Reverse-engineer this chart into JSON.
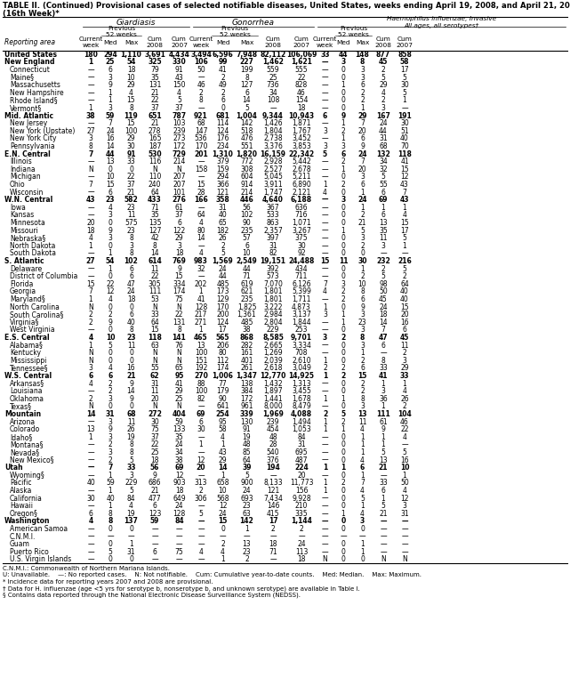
{
  "title_line1": "TABLE II. (Continued) Provisional cases of selected notifiable diseases, United States, weeks ending April 19, 2008, and April 21, 2007",
  "title_line2": "(16th Week)*",
  "rows": [
    [
      "United States",
      "180",
      "294",
      "1,110",
      "3,691",
      "4,434",
      "3,494",
      "6,596",
      "7,948",
      "82,112",
      "106,069",
      "33",
      "44",
      "148",
      "877",
      "858"
    ],
    [
      "New England",
      "1",
      "25",
      "54",
      "325",
      "330",
      "106",
      "99",
      "227",
      "1,462",
      "1,621",
      "—",
      "3",
      "8",
      "45",
      "58"
    ],
    [
      "Connecticut",
      "—",
      "6",
      "18",
      "79",
      "91",
      "50",
      "41",
      "199",
      "559",
      "555",
      "—",
      "0",
      "3",
      "2",
      "17"
    ],
    [
      "Maine§",
      "—",
      "3",
      "10",
      "35",
      "43",
      "—",
      "2",
      "8",
      "25",
      "22",
      "—",
      "0",
      "3",
      "5",
      "5"
    ],
    [
      "Massachusetts",
      "—",
      "9",
      "29",
      "131",
      "150",
      "46",
      "49",
      "127",
      "736",
      "828",
      "—",
      "1",
      "6",
      "29",
      "30"
    ],
    [
      "New Hampshire",
      "—",
      "1",
      "4",
      "21",
      "4",
      "2",
      "2",
      "6",
      "34",
      "46",
      "—",
      "0",
      "2",
      "4",
      "5"
    ],
    [
      "Rhode Island§",
      "—",
      "1",
      "15",
      "22",
      "5",
      "8",
      "6",
      "14",
      "108",
      "154",
      "—",
      "0",
      "2",
      "2",
      "1"
    ],
    [
      "Vermont§",
      "1",
      "3",
      "8",
      "37",
      "37",
      "—",
      "0",
      "5",
      "—",
      "18",
      "—",
      "0",
      "1",
      "3",
      "—"
    ],
    [
      "Mid. Atlantic",
      "38",
      "59",
      "119",
      "651",
      "787",
      "921",
      "681",
      "1,004",
      "9,344",
      "10,943",
      "6",
      "9",
      "29",
      "167",
      "191"
    ],
    [
      "New Jersey",
      "—",
      "7",
      "15",
      "21",
      "103",
      "68",
      "114",
      "142",
      "1,426",
      "1,871",
      "—",
      "1",
      "7",
      "24",
      "30"
    ],
    [
      "New York (Upstate)",
      "27",
      "24",
      "100",
      "278",
      "239",
      "147",
      "124",
      "518",
      "1,804",
      "1,767",
      "3",
      "2",
      "20",
      "44",
      "51"
    ],
    [
      "New York City",
      "3",
      "16",
      "29",
      "165",
      "273",
      "536",
      "176",
      "476",
      "2,738",
      "3,452",
      "—",
      "1",
      "6",
      "31",
      "40"
    ],
    [
      "Pennsylvania",
      "8",
      "14",
      "30",
      "187",
      "172",
      "170",
      "234",
      "551",
      "3,376",
      "3,853",
      "3",
      "3",
      "9",
      "68",
      "70"
    ],
    [
      "E.N. Central",
      "7",
      "44",
      "91",
      "530",
      "729",
      "201",
      "1,310",
      "1,820",
      "16,159",
      "22,342",
      "5",
      "6",
      "24",
      "132",
      "118"
    ],
    [
      "Illinois",
      "—",
      "13",
      "33",
      "116",
      "214",
      "—",
      "379",
      "772",
      "2,928",
      "5,442",
      "—",
      "2",
      "7",
      "34",
      "41"
    ],
    [
      "Indiana",
      "N",
      "0",
      "0",
      "N",
      "N",
      "158",
      "159",
      "308",
      "2,527",
      "2,678",
      "—",
      "1",
      "20",
      "32",
      "15"
    ],
    [
      "Michigan",
      "—",
      "10",
      "22",
      "110",
      "207",
      "—",
      "294",
      "604",
      "5,045",
      "5,211",
      "—",
      "0",
      "3",
      "5",
      "12"
    ],
    [
      "Ohio",
      "7",
      "15",
      "37",
      "240",
      "207",
      "15",
      "366",
      "914",
      "3,911",
      "6,890",
      "1",
      "2",
      "6",
      "55",
      "43"
    ],
    [
      "Wisconsin",
      "—",
      "6",
      "21",
      "64",
      "101",
      "28",
      "121",
      "214",
      "1,747",
      "2,121",
      "4",
      "0",
      "1",
      "6",
      "7"
    ],
    [
      "W.N. Central",
      "43",
      "23",
      "582",
      "433",
      "276",
      "166",
      "358",
      "446",
      "4,640",
      "6,188",
      "—",
      "3",
      "24",
      "69",
      "43"
    ],
    [
      "Iowa",
      "—",
      "4",
      "23",
      "71",
      "61",
      "—",
      "31",
      "56",
      "367",
      "636",
      "—",
      "0",
      "1",
      "1",
      "1"
    ],
    [
      "Kansas",
      "—",
      "3",
      "11",
      "35",
      "37",
      "64",
      "40",
      "102",
      "533",
      "716",
      "—",
      "0",
      "2",
      "6",
      "4"
    ],
    [
      "Minnesota",
      "20",
      "0",
      "575",
      "135",
      "6",
      "4",
      "65",
      "90",
      "863",
      "1,071",
      "—",
      "0",
      "21",
      "13",
      "15"
    ],
    [
      "Missouri",
      "18",
      "9",
      "23",
      "127",
      "122",
      "80",
      "182",
      "235",
      "2,357",
      "3,267",
      "—",
      "1",
      "5",
      "35",
      "17"
    ],
    [
      "Nebraska§",
      "4",
      "3",
      "8",
      "42",
      "29",
      "14",
      "26",
      "57",
      "397",
      "375",
      "—",
      "0",
      "3",
      "11",
      "5"
    ],
    [
      "North Dakota",
      "1",
      "0",
      "3",
      "8",
      "3",
      "—",
      "2",
      "6",
      "31",
      "30",
      "—",
      "0",
      "2",
      "3",
      "1"
    ],
    [
      "South Dakota",
      "—",
      "1",
      "8",
      "14",
      "18",
      "4",
      "5",
      "10",
      "82",
      "92",
      "—",
      "0",
      "0",
      "—",
      "—"
    ],
    [
      "S. Atlantic",
      "27",
      "54",
      "102",
      "614",
      "769",
      "983",
      "1,569",
      "2,549",
      "19,151",
      "24,488",
      "15",
      "11",
      "30",
      "232",
      "216"
    ],
    [
      "Delaware",
      "—",
      "1",
      "6",
      "11",
      "9",
      "32",
      "24",
      "44",
      "392",
      "434",
      "—",
      "0",
      "1",
      "2",
      "5"
    ],
    [
      "District of Columbia",
      "—",
      "0",
      "6",
      "22",
      "15",
      "—",
      "44",
      "71",
      "573",
      "711",
      "—",
      "0",
      "2",
      "5",
      "2"
    ],
    [
      "Florida",
      "15",
      "22",
      "47",
      "305",
      "334",
      "202",
      "485",
      "619",
      "7,070",
      "6,126",
      "7",
      "3",
      "10",
      "98",
      "64"
    ],
    [
      "Georgia",
      "7",
      "12",
      "24",
      "111",
      "174",
      "1",
      "173",
      "621",
      "1,801",
      "5,399",
      "4",
      "2",
      "8",
      "50",
      "40"
    ],
    [
      "Maryland§",
      "1",
      "4",
      "18",
      "53",
      "75",
      "41",
      "129",
      "235",
      "1,801",
      "1,711",
      "—",
      "2",
      "6",
      "45",
      "40"
    ],
    [
      "North Carolina",
      "N",
      "0",
      "0",
      "N",
      "N",
      "128",
      "170",
      "1,825",
      "3,222",
      "4,873",
      "1",
      "0",
      "9",
      "24",
      "15"
    ],
    [
      "South Carolina§",
      "2",
      "2",
      "6",
      "33",
      "22",
      "217",
      "200",
      "1,361",
      "2,984",
      "3,137",
      "3",
      "1",
      "3",
      "18",
      "20"
    ],
    [
      "Virginia§",
      "2",
      "9",
      "40",
      "64",
      "131",
      "271",
      "124",
      "485",
      "2,804",
      "1,844",
      "—",
      "1",
      "23",
      "14",
      "16"
    ],
    [
      "West Virginia",
      "—",
      "0",
      "8",
      "15",
      "8",
      "1",
      "17",
      "38",
      "229",
      "253",
      "—",
      "0",
      "3",
      "7",
      "6"
    ],
    [
      "E.S. Central",
      "4",
      "10",
      "23",
      "118",
      "141",
      "465",
      "565",
      "868",
      "8,585",
      "9,701",
      "3",
      "2",
      "8",
      "47",
      "45"
    ],
    [
      "Alabama§",
      "1",
      "5",
      "11",
      "63",
      "76",
      "13",
      "206",
      "282",
      "2,665",
      "3,334",
      "—",
      "0",
      "3",
      "6",
      "11"
    ],
    [
      "Kentucky",
      "N",
      "0",
      "0",
      "N",
      "N",
      "100",
      "80",
      "161",
      "1,269",
      "708",
      "—",
      "0",
      "1",
      "—",
      "2"
    ],
    [
      "Mississippi",
      "N",
      "0",
      "0",
      "N",
      "N",
      "151",
      "112",
      "401",
      "2,039",
      "2,610",
      "1",
      "0",
      "2",
      "8",
      "3"
    ],
    [
      "Tennessee§",
      "3",
      "4",
      "16",
      "55",
      "65",
      "192",
      "174",
      "261",
      "2,618",
      "3,049",
      "2",
      "2",
      "6",
      "33",
      "29"
    ],
    [
      "W.S. Central",
      "6",
      "6",
      "21",
      "62",
      "95",
      "270",
      "1,006",
      "1,347",
      "12,770",
      "14,925",
      "1",
      "2",
      "15",
      "41",
      "33"
    ],
    [
      "Arkansas§",
      "4",
      "2",
      "9",
      "31",
      "41",
      "88",
      "77",
      "138",
      "1,432",
      "1,313",
      "—",
      "0",
      "2",
      "1",
      "1"
    ],
    [
      "Louisiana",
      "—",
      "2",
      "14",
      "11",
      "29",
      "100",
      "179",
      "384",
      "1,897",
      "3,455",
      "—",
      "0",
      "2",
      "3",
      "4"
    ],
    [
      "Oklahoma",
      "2",
      "3",
      "9",
      "20",
      "25",
      "82",
      "90",
      "172",
      "1,441",
      "1,678",
      "1",
      "1",
      "8",
      "36",
      "26"
    ],
    [
      "Texas§",
      "N",
      "0",
      "0",
      "N",
      "N",
      "—",
      "641",
      "961",
      "8,000",
      "8,479",
      "—",
      "0",
      "3",
      "1",
      "2"
    ],
    [
      "Mountain",
      "14",
      "31",
      "68",
      "272",
      "404",
      "69",
      "254",
      "339",
      "1,969",
      "4,088",
      "2",
      "5",
      "13",
      "111",
      "104"
    ],
    [
      "Arizona",
      "—",
      "3",
      "11",
      "30",
      "59",
      "6",
      "95",
      "130",
      "239",
      "1,494",
      "1",
      "2",
      "11",
      "61",
      "46"
    ],
    [
      "Colorado",
      "13",
      "9",
      "26",
      "75",
      "133",
      "30",
      "58",
      "91",
      "454",
      "1,053",
      "1",
      "1",
      "4",
      "9",
      "22"
    ],
    [
      "Idaho§",
      "1",
      "3",
      "19",
      "37",
      "35",
      "—",
      "4",
      "19",
      "48",
      "84",
      "—",
      "0",
      "1",
      "1",
      "4"
    ],
    [
      "Montana§",
      "—",
      "2",
      "8",
      "22",
      "24",
      "1",
      "1",
      "48",
      "28",
      "31",
      "—",
      "0",
      "1",
      "1",
      "—"
    ],
    [
      "Nevada§",
      "—",
      "3",
      "8",
      "25",
      "34",
      "—",
      "43",
      "85",
      "540",
      "695",
      "—",
      "0",
      "1",
      "5",
      "5"
    ],
    [
      "New Mexico§",
      "—",
      "2",
      "5",
      "18",
      "38",
      "12",
      "29",
      "64",
      "376",
      "487",
      "—",
      "0",
      "4",
      "13",
      "16"
    ],
    [
      "Utah",
      "—",
      "7",
      "33",
      "56",
      "69",
      "20",
      "14",
      "39",
      "194",
      "224",
      "1",
      "1",
      "6",
      "21",
      "10"
    ],
    [
      "Wyoming§",
      "—",
      "1",
      "3",
      "9",
      "12",
      "—",
      "1",
      "5",
      "—",
      "20",
      "—",
      "0",
      "1",
      "—",
      "1"
    ],
    [
      "Pacific",
      "40",
      "59",
      "229",
      "686",
      "903",
      "313",
      "658",
      "900",
      "8,133",
      "11,773",
      "1",
      "2",
      "7",
      "33",
      "50"
    ],
    [
      "Alaska",
      "—",
      "1",
      "5",
      "21",
      "18",
      "2",
      "10",
      "24",
      "121",
      "156",
      "1",
      "0",
      "4",
      "6",
      "4"
    ],
    [
      "California",
      "30",
      "40",
      "84",
      "477",
      "649",
      "306",
      "568",
      "693",
      "7,434",
      "9,928",
      "—",
      "0",
      "5",
      "1",
      "12"
    ],
    [
      "Hawaii",
      "—",
      "1",
      "4",
      "6",
      "24",
      "—",
      "12",
      "23",
      "146",
      "210",
      "—",
      "0",
      "1",
      "5",
      "3"
    ],
    [
      "Oregon§",
      "6",
      "8",
      "19",
      "123",
      "128",
      "5",
      "24",
      "63",
      "415",
      "335",
      "—",
      "1",
      "4",
      "21",
      "31"
    ],
    [
      "Washington",
      "4",
      "8",
      "137",
      "59",
      "84",
      "—",
      "15",
      "142",
      "17",
      "1,144",
      "—",
      "0",
      "3",
      "—",
      "—"
    ],
    [
      "American Samoa",
      "—",
      "0",
      "0",
      "—",
      "—",
      "—",
      "0",
      "1",
      "2",
      "2",
      "—",
      "0",
      "0",
      "—",
      "—"
    ],
    [
      "C.N.M.I.",
      "—",
      "—",
      "—",
      "—",
      "—",
      "—",
      "—",
      "—",
      "—",
      "—",
      "—",
      "—",
      "—",
      "—",
      "—"
    ],
    [
      "Guam",
      "—",
      "0",
      "1",
      "—",
      "—",
      "—",
      "2",
      "13",
      "18",
      "24",
      "—",
      "0",
      "1",
      "—",
      "—"
    ],
    [
      "Puerto Rico",
      "—",
      "5",
      "31",
      "6",
      "75",
      "4",
      "4",
      "23",
      "71",
      "113",
      "—",
      "0",
      "1",
      "—",
      "—"
    ],
    [
      "U.S. Virgin Islands",
      "—",
      "0",
      "0",
      "—",
      "—",
      "—",
      "1",
      "2",
      "—",
      "18",
      "N",
      "0",
      "0",
      "N",
      "N"
    ]
  ],
  "bold_rows": [
    0,
    1,
    8,
    13,
    19,
    27,
    37,
    42,
    47,
    54,
    61
  ],
  "footnotes": [
    "C.N.M.I.: Commonwealth of Northern Mariana Islands.",
    "U: Unavailable.    —: No reported cases.    N: Not notifiable.    Cum: Cumulative year-to-date counts.    Med: Median.    Max: Maximum.",
    "* Incidence data for reporting years 2007 and 2008 are provisional.",
    "† Data for H. influenzae (age <5 yrs for serotype b, nonserotype b, and unknown serotype) are available in Table I.",
    "§ Contains data reported through the National Electronic Disease Surveillance System (NEDSS)."
  ]
}
